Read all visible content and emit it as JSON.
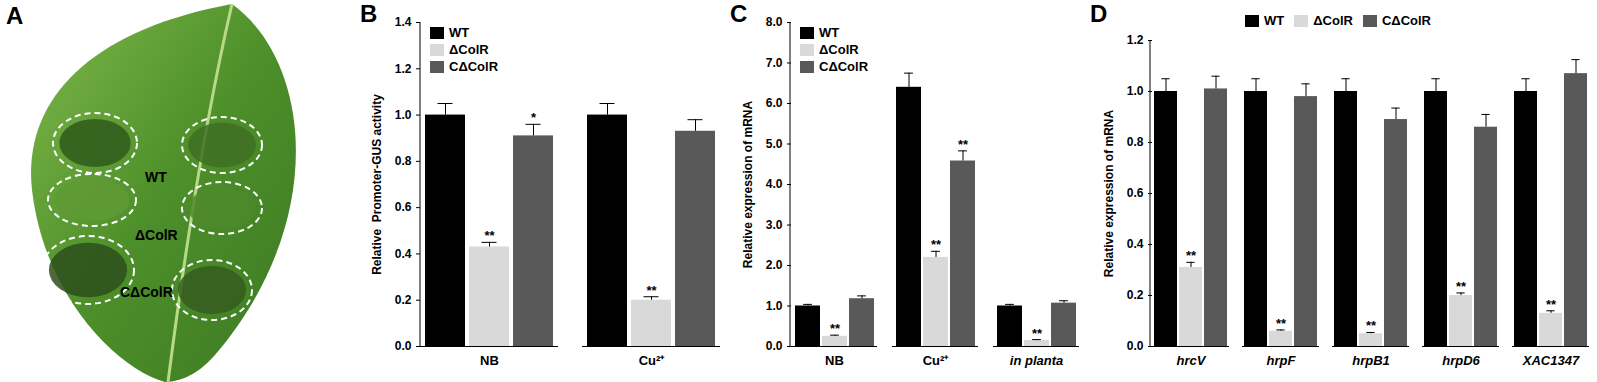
{
  "image_panel": {
    "title": "A",
    "labels": [
      "WT",
      "ΔColR",
      "CΔColR"
    ]
  },
  "chart_data": [
    {
      "type": "bar",
      "title": "B",
      "ylabel": "Relative  Promoter-GUS activity",
      "categories": [
        "NB",
        "Cu²⁺"
      ],
      "ylim": [
        0,
        1.4
      ],
      "yticks": [
        {
          "value": 0,
          "label": "0.0"
        },
        {
          "value": 0.2,
          "label": "0.2"
        },
        {
          "value": 0.4,
          "label": "0.4"
        },
        {
          "value": 0.6,
          "label": "0.6"
        },
        {
          "value": 0.8,
          "label": "0.8"
        },
        {
          "value": 1.0,
          "label": "1.0"
        },
        {
          "value": 1.2,
          "label": "1.2"
        },
        {
          "value": 1.4,
          "label": "1.4"
        }
      ],
      "legend": "top-left",
      "series": [
        {
          "name": "WT",
          "color": "#000000",
          "values": [
            1.0,
            1.0
          ],
          "errors": [
            0.05,
            0.05
          ]
        },
        {
          "name": "ΔColR",
          "color": "#d9d9d9",
          "values": [
            0.43,
            0.2
          ],
          "errors": [
            0.02,
            0.015
          ],
          "annotations": [
            "**",
            "**"
          ]
        },
        {
          "name": "CΔColR",
          "color": "#595959",
          "values": [
            0.91,
            0.93
          ],
          "errors": [
            0.05,
            0.05
          ],
          "annotations": [
            "*",
            null
          ]
        }
      ]
    },
    {
      "type": "bar",
      "title": "C",
      "ylabel": "Relative expression of mRNA",
      "categories": [
        "NB",
        "Cu²⁺",
        "in planta"
      ],
      "ylim": [
        0,
        8
      ],
      "yticks": [
        {
          "value": 0,
          "label": "0.0"
        },
        {
          "value": 1,
          "label": "1.0"
        },
        {
          "value": 2,
          "label": "2.0"
        },
        {
          "value": 3,
          "label": "3.0"
        },
        {
          "value": 4,
          "label": "4.0"
        },
        {
          "value": 5,
          "label": "5.0"
        },
        {
          "value": 6,
          "label": "6.0"
        },
        {
          "value": 7,
          "label": "7.0"
        },
        {
          "value": 8,
          "label": "8.0"
        }
      ],
      "legend": "top-left",
      "series": [
        {
          "name": "WT",
          "color": "#000000",
          "values": [
            1.0,
            6.4,
            1.0
          ],
          "errors": [
            0.04,
            0.35,
            0.04
          ]
        },
        {
          "name": "ΔColR",
          "color": "#d9d9d9",
          "values": [
            0.25,
            2.2,
            0.15
          ],
          "errors": [
            0.03,
            0.15,
            0.02
          ],
          "annotations": [
            "**",
            "**",
            "**"
          ]
        },
        {
          "name": "CΔColR",
          "color": "#595959",
          "values": [
            1.18,
            4.58,
            1.07
          ],
          "errors": [
            0.07,
            0.25,
            0.06
          ],
          "annotations": [
            null,
            "**",
            null
          ]
        }
      ]
    },
    {
      "type": "bar",
      "title": "D",
      "ylabel": "Relative expression of mRNA",
      "categories": [
        "hrcV",
        "hrpF",
        "hrpB1",
        "hrpD6",
        "XAC1347"
      ],
      "ylim": [
        0,
        1.2
      ],
      "yticks": [
        {
          "value": 0,
          "label": "0.0"
        },
        {
          "value": 0.2,
          "label": "0.2"
        },
        {
          "value": 0.4,
          "label": "0.4"
        },
        {
          "value": 0.6,
          "label": "0.6"
        },
        {
          "value": 0.8,
          "label": "0.8"
        },
        {
          "value": 1.0,
          "label": "1.0"
        },
        {
          "value": 1.2,
          "label": "1.2"
        }
      ],
      "legend": "top",
      "series": [
        {
          "name": "WT",
          "color": "#000000",
          "values": [
            1.0,
            1.0,
            1.0,
            1.0,
            1.0
          ],
          "errors": [
            0.05,
            0.05,
            0.05,
            0.05,
            0.05
          ]
        },
        {
          "name": "ΔColR",
          "color": "#d9d9d9",
          "values": [
            0.31,
            0.06,
            0.05,
            0.2,
            0.13
          ],
          "errors": [
            0.02,
            0.005,
            0.005,
            0.01,
            0.01
          ],
          "annotations": [
            "**",
            "**",
            "**",
            "**",
            "**"
          ]
        },
        {
          "name": "CΔColR",
          "color": "#595959",
          "values": [
            1.01,
            0.98,
            0.89,
            0.86,
            1.07
          ],
          "errors": [
            0.05,
            0.05,
            0.045,
            0.05,
            0.055
          ]
        }
      ]
    }
  ]
}
